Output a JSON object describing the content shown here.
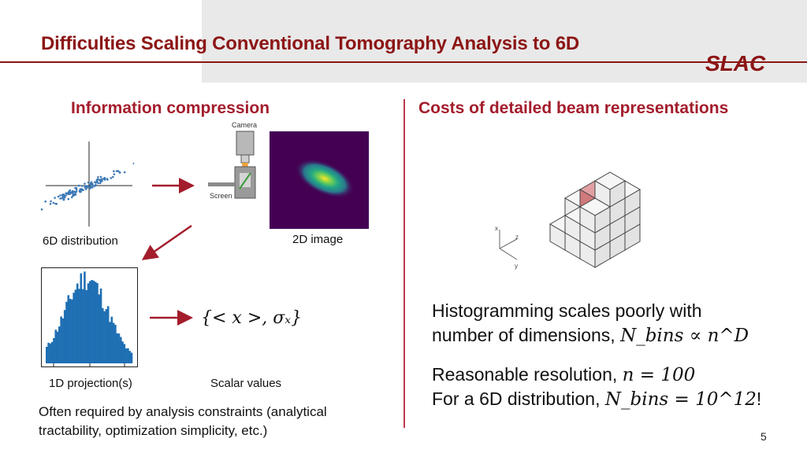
{
  "slide": {
    "title": "Difficulties Scaling Conventional Tomography Analysis to 6D",
    "logo_text": "SLAC",
    "page_number": "5"
  },
  "left": {
    "heading": "Information compression",
    "labels": {
      "distribution": "6D distribution",
      "image": "2D image",
      "projection": "1D projection(s)",
      "scalars": "Scalar values",
      "camera": "Camera",
      "screen": "Screen"
    },
    "scalar_formula": "{< x >, σₓ}",
    "note": "Often required by analysis constraints (analytical tractability, optimization simplicity, etc.)"
  },
  "right": {
    "heading": "Costs of detailed beam representations",
    "axes": {
      "x": "x",
      "y": "y",
      "z": "z"
    },
    "line1a": "Histogramming scales poorly with",
    "line1b_text": "number of dimensions, ",
    "line1b_math": "N_bins ∝ n^D",
    "line2a_text": "Reasonable resolution, ",
    "line2a_math": "n = 100",
    "line2b_text": "For a 6D distribution, ",
    "line2b_math": "N_bins = 10^12",
    "line2b_tail": "!"
  },
  "colors": {
    "accent": "#8c1515",
    "arrow": "#a31d2c",
    "histogram": "#1f6fb4",
    "image_bg": "#440154",
    "highlight_cube": "#d9898b"
  }
}
